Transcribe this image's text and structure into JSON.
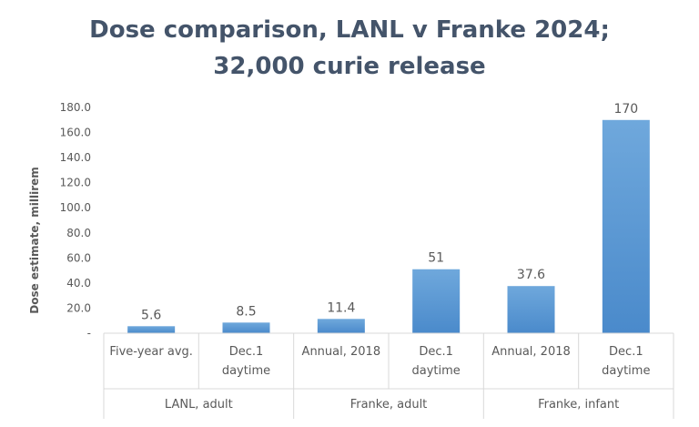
{
  "chart_data": {
    "type": "bar",
    "title_lines": [
      "Dose comparison,  LANL v Franke 2024;",
      "32,000 curie release"
    ],
    "ylabel": "Dose estimate, millirem",
    "ylim": [
      0,
      180
    ],
    "y_ticks": [
      0,
      20,
      40,
      60,
      80,
      100,
      120,
      140,
      160,
      180
    ],
    "y_tick_labels": [
      "-",
      "20.0",
      "40.0",
      "60.0",
      "80.0",
      "100.0",
      "120.0",
      "140.0",
      "160.0",
      "180.0"
    ],
    "categories": [
      {
        "line1": "Five-year avg.",
        "line2": ""
      },
      {
        "line1": "Dec.1",
        "line2": "daytime"
      },
      {
        "line1": "Annual, 2018",
        "line2": ""
      },
      {
        "line1": "Dec.1",
        "line2": "daytime"
      },
      {
        "line1": "Annual, 2018",
        "line2": ""
      },
      {
        "line1": "Dec.1",
        "line2": "daytime"
      }
    ],
    "groups": [
      {
        "label": "LANL, adult",
        "span": 2
      },
      {
        "label": "Franke, adult",
        "span": 2
      },
      {
        "label": "Franke, infant",
        "span": 2
      }
    ],
    "values": [
      5.6,
      8.5,
      11.4,
      51,
      37.6,
      170
    ],
    "data_labels": [
      "5.6",
      "8.5",
      "11.4",
      "51",
      "37.6",
      "170"
    ],
    "bar_color": "#5B9BD5",
    "bar_color_light": "#6FA8DC",
    "text_color": "#595959",
    "grid": false,
    "legend": "none"
  }
}
